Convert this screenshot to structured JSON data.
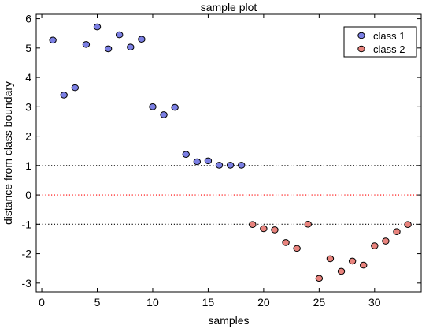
{
  "chart_data": {
    "type": "scatter",
    "title": "sample plot",
    "xlabel": "samples",
    "ylabel": "distance from class boundary",
    "xlim": [
      -0.5,
      34.2
    ],
    "ylim": [
      -3.3,
      6.15
    ],
    "xticks": [
      0,
      5,
      10,
      15,
      20,
      25,
      30
    ],
    "yticks": [
      -3,
      -2,
      -1,
      0,
      1,
      2,
      3,
      4,
      5,
      6
    ],
    "grid": false,
    "legend_position": "top-right",
    "reference_lines": [
      {
        "y": 1,
        "color": "#000000",
        "style": "dotted"
      },
      {
        "y": 0,
        "color": "#ff0000",
        "style": "dotted"
      },
      {
        "y": -1,
        "color": "#000000",
        "style": "dotted"
      }
    ],
    "series": [
      {
        "name": "class 1",
        "color": "#7b7fe3",
        "x": [
          1,
          2,
          3,
          4,
          5,
          6,
          7,
          8,
          9,
          10,
          11,
          12,
          13,
          14,
          15,
          16,
          17,
          18
        ],
        "y": [
          5.27,
          3.4,
          3.65,
          5.12,
          5.72,
          4.97,
          5.45,
          5.03,
          5.3,
          3.0,
          2.73,
          2.98,
          1.38,
          1.13,
          1.16,
          1.01,
          1.01,
          1.01
        ]
      },
      {
        "name": "class 2",
        "color": "#e8837d",
        "x": [
          19,
          20,
          21,
          22,
          23,
          24,
          25,
          26,
          27,
          28,
          29,
          30,
          31,
          32,
          33
        ],
        "y": [
          -1.01,
          -1.15,
          -1.19,
          -1.62,
          -1.82,
          -1.0,
          -2.84,
          -2.17,
          -2.6,
          -2.25,
          -2.39,
          -1.73,
          -1.57,
          -1.25,
          -1.01
        ]
      }
    ]
  }
}
